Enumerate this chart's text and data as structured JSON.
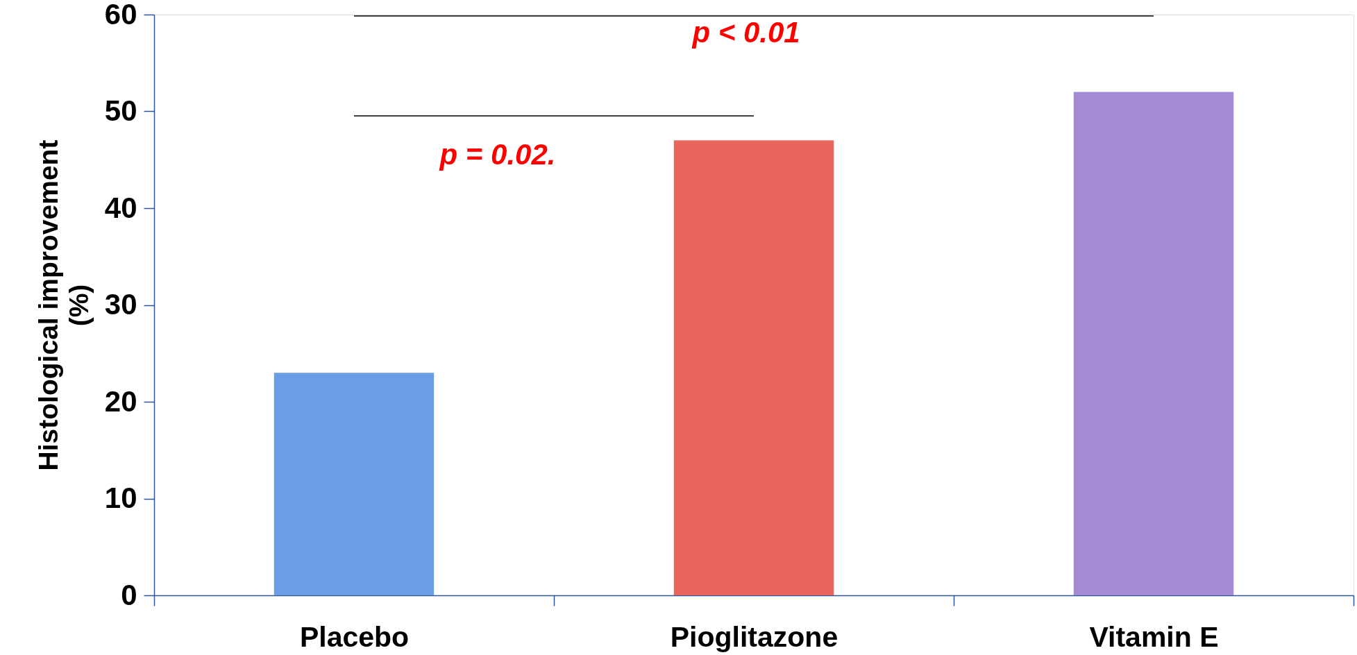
{
  "chart_data": {
    "type": "bar",
    "categories": [
      "Placebo",
      "Pioglitazone",
      "Vitamin E"
    ],
    "values": [
      23,
      47,
      52
    ],
    "colors": [
      "#6a9de6",
      "#e9665f",
      "#a689d4"
    ],
    "ylabel": "Histological improvement (%)",
    "ylim": [
      0,
      60
    ],
    "yticks": [
      0,
      10,
      20,
      30,
      40,
      50,
      60
    ],
    "annotations": [
      "p < 0.01",
      "p = 0.02."
    ]
  }
}
